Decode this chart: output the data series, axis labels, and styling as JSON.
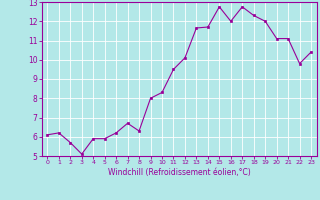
{
  "x": [
    0,
    1,
    2,
    3,
    4,
    5,
    6,
    7,
    8,
    9,
    10,
    11,
    12,
    13,
    14,
    15,
    16,
    17,
    18,
    19,
    20,
    21,
    22,
    23
  ],
  "y": [
    6.1,
    6.2,
    5.7,
    5.1,
    5.9,
    5.9,
    6.2,
    6.7,
    6.3,
    8.0,
    8.3,
    9.5,
    10.1,
    11.65,
    11.7,
    12.75,
    12.0,
    12.75,
    12.3,
    12.0,
    11.1,
    11.1,
    9.8,
    10.4
  ],
  "line_color": "#990099",
  "marker": "s",
  "marker_size": 2,
  "bg_color": "#b3e8e8",
  "grid_color": "#ffffff",
  "xlabel": "Windchill (Refroidissement éolien,°C)",
  "ylim": [
    5,
    13
  ],
  "xlim": [
    -0.5,
    23.5
  ],
  "yticks": [
    5,
    6,
    7,
    8,
    9,
    10,
    11,
    12,
    13
  ],
  "xticks": [
    0,
    1,
    2,
    3,
    4,
    5,
    6,
    7,
    8,
    9,
    10,
    11,
    12,
    13,
    14,
    15,
    16,
    17,
    18,
    19,
    20,
    21,
    22,
    23
  ],
  "label_color": "#990099",
  "tick_color": "#990099",
  "spine_color": "#990099"
}
